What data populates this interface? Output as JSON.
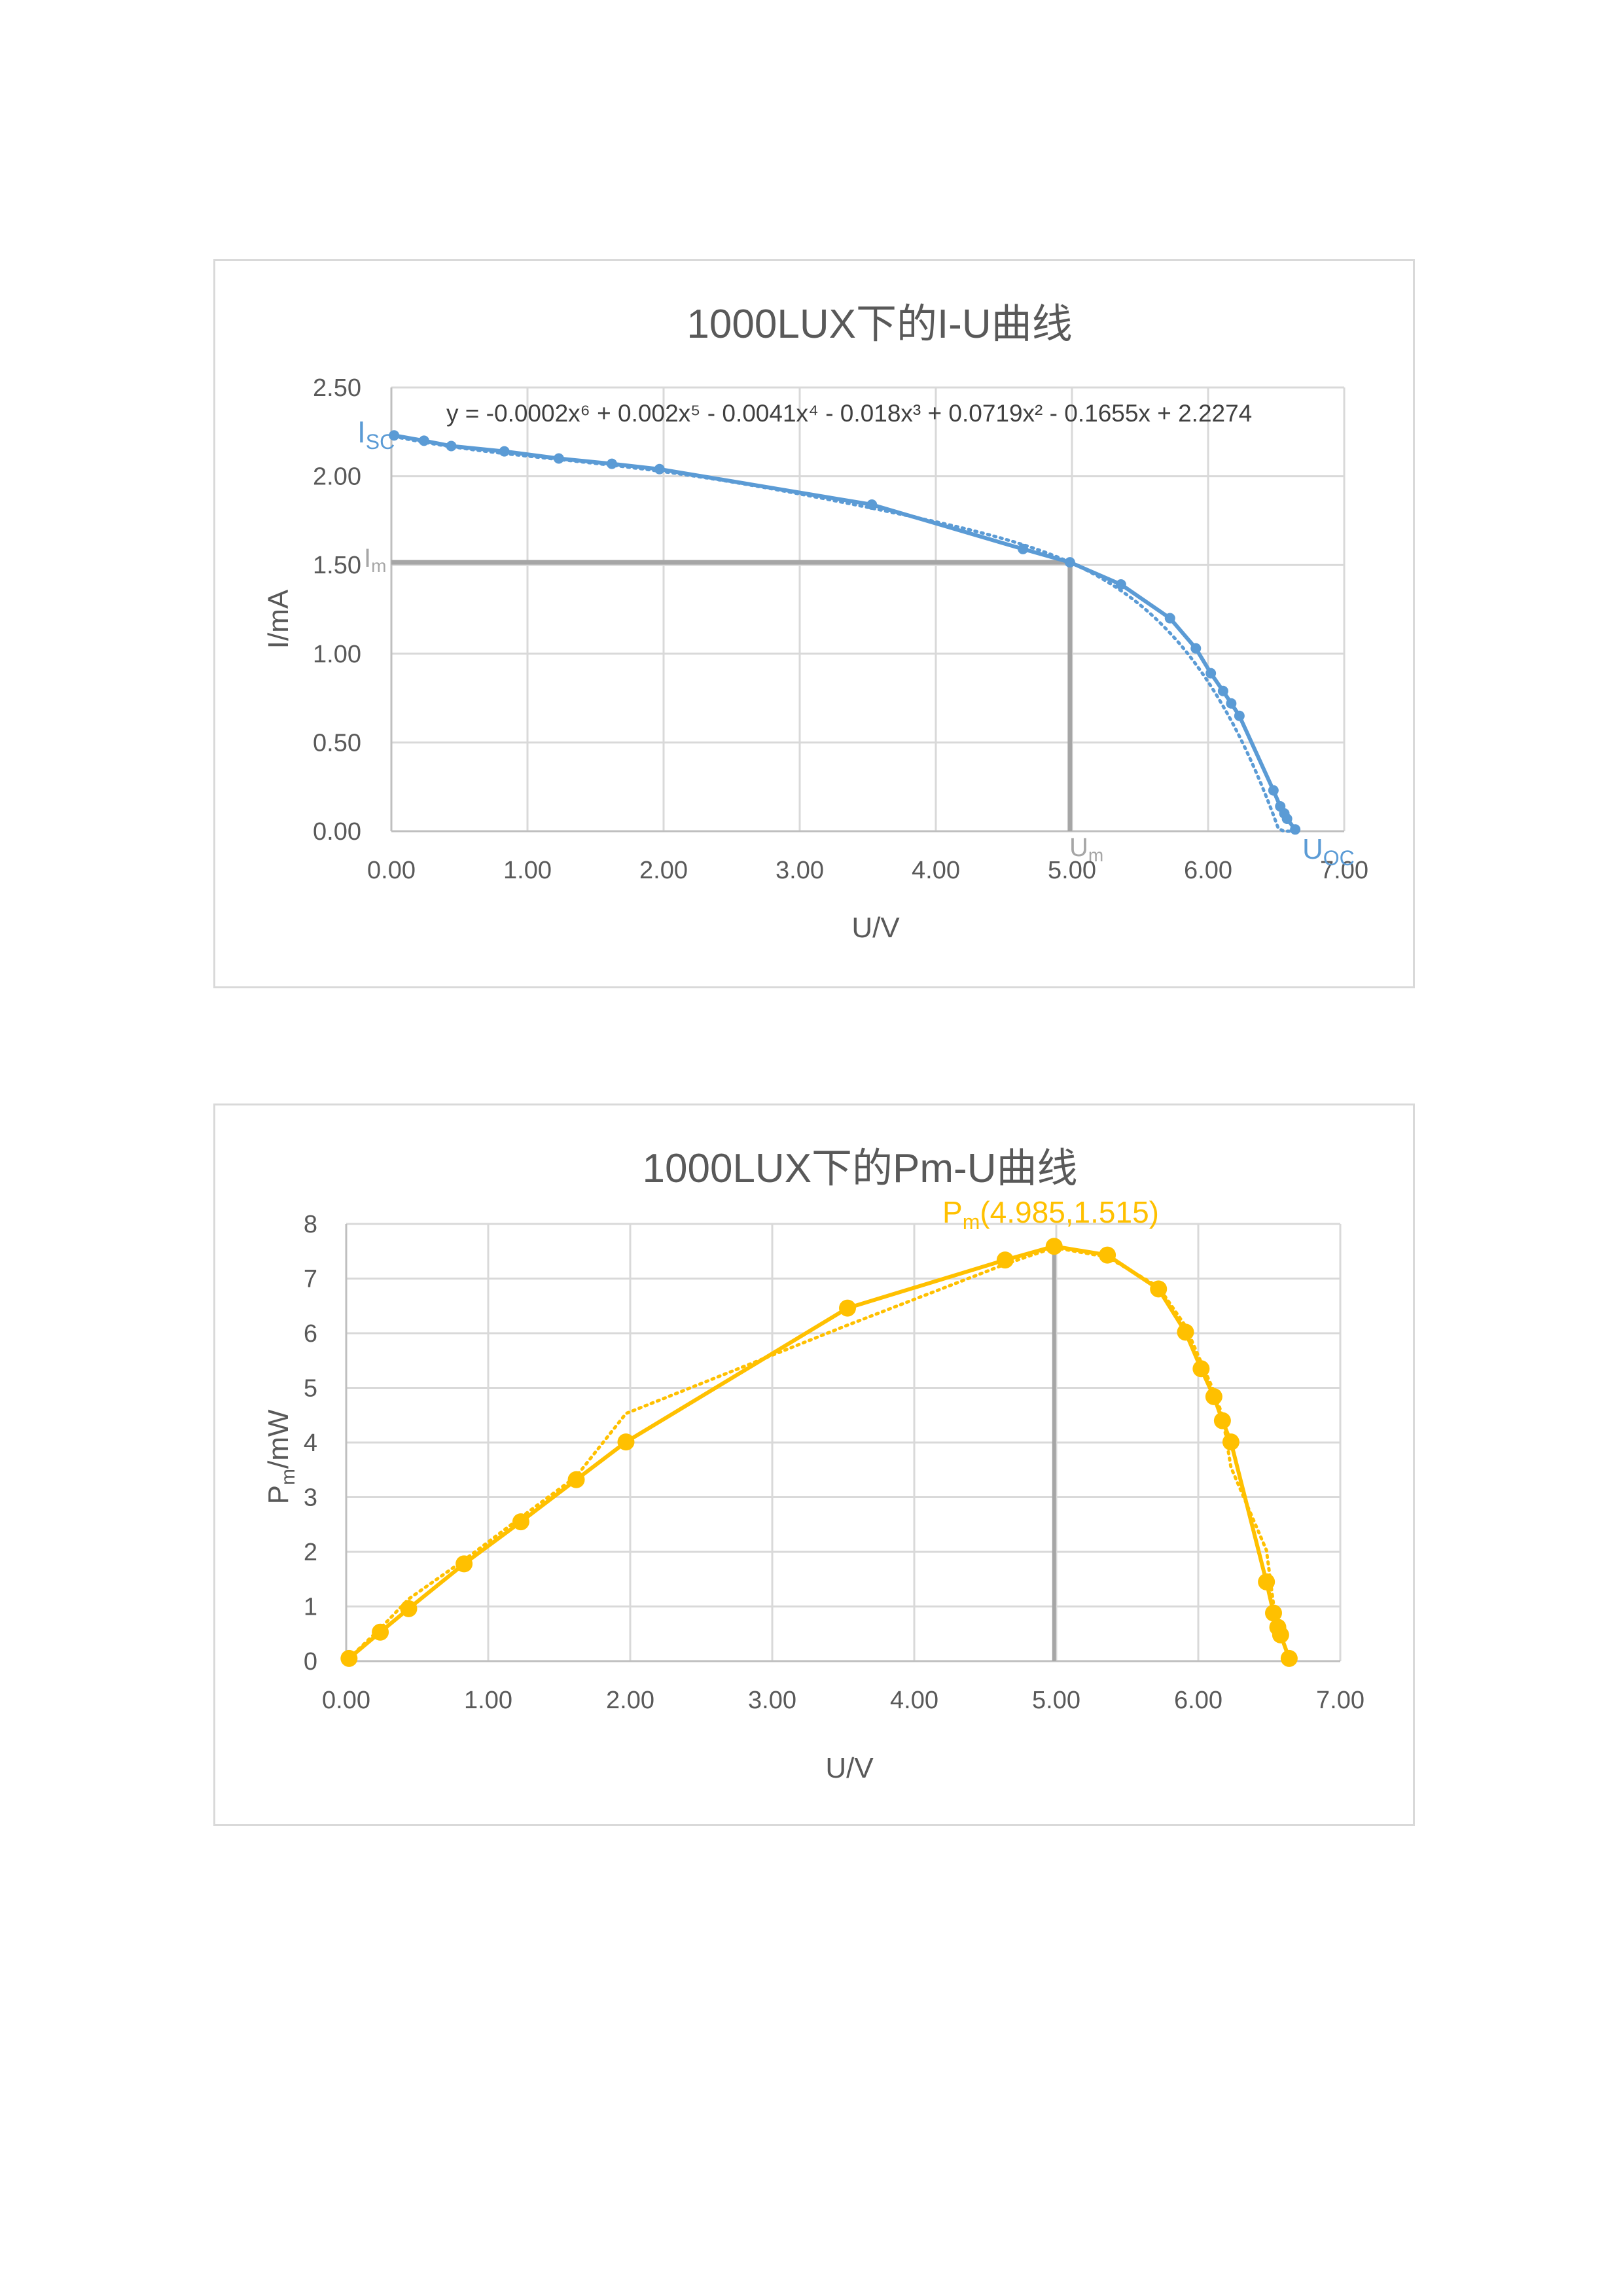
{
  "chart_data": [
    {
      "type": "line",
      "title": "1000LUX下的I-U曲线",
      "xlabel": "U/V",
      "ylabel": "I/mA",
      "xlim": [
        0,
        7
      ],
      "ylim": [
        0,
        2.5
      ],
      "xticks": [
        "0.00",
        "1.00",
        "2.00",
        "3.00",
        "4.00",
        "5.00",
        "6.00",
        "7.00"
      ],
      "yticks": [
        "0.00",
        "0.50",
        "1.00",
        "1.50",
        "2.00",
        "2.50"
      ],
      "grid": true,
      "series": [
        {
          "color": "#5b9bd5",
          "x": [
            0.02,
            0.24,
            0.44,
            0.83,
            1.23,
            1.62,
            1.97,
            3.53,
            4.64,
            4.985,
            5.36,
            5.72,
            5.91,
            6.02,
            6.11,
            6.17,
            6.23,
            6.48,
            6.53,
            6.56,
            6.58,
            6.64
          ],
          "y": [
            2.23,
            2.2,
            2.17,
            2.14,
            2.1,
            2.07,
            2.04,
            1.84,
            1.59,
            1.515,
            1.39,
            1.2,
            1.03,
            0.89,
            0.79,
            0.72,
            0.65,
            0.23,
            0.14,
            0.1,
            0.07,
            0.01
          ]
        }
      ],
      "trendline": {
        "type": "polynomial",
        "order": 6,
        "style": "dotted",
        "coefficients": [
          -0.0002,
          0.002,
          -0.0041,
          -0.018,
          0.0719,
          -0.1655,
          2.2274
        ],
        "equation": "y = -0.0002x⁶ + 0.002x⁵ - 0.0041x⁴ - 0.018x³ + 0.0719x² - 0.1655x + 2.2274"
      },
      "markers": {
        "max_power_point": {
          "x": 4.985,
          "y": 1.515
        },
        "isc_label": "I",
        "isc_sub": "SC",
        "im_label": "I",
        "im_sub": "m",
        "um_label": "U",
        "um_sub": "m",
        "uoc_label": "U",
        "uoc_sub": "OC"
      },
      "colors": {
        "series": "#5b9bd5",
        "guide": "#a6a6a6",
        "guide_label": "#a6a6a6"
      }
    },
    {
      "type": "line",
      "title": "1000LUX下的Pm-U曲线",
      "xlabel": "U/V",
      "ylabel_main": "P",
      "ylabel_sub": "m",
      "ylabel_tail": "/mW",
      "xlim": [
        0,
        7
      ],
      "ylim": [
        0,
        8
      ],
      "xticks": [
        "0.00",
        "1.00",
        "2.00",
        "3.00",
        "4.00",
        "5.00",
        "6.00",
        "7.00"
      ],
      "yticks": [
        "0",
        "1",
        "2",
        "3",
        "4",
        "5",
        "6",
        "7",
        "8"
      ],
      "grid": true,
      "series": [
        {
          "color": "#ffc000",
          "x": [
            0.02,
            0.24,
            0.44,
            0.83,
            1.23,
            1.62,
            1.97,
            3.53,
            4.64,
            4.985,
            5.36,
            5.72,
            5.91,
            6.02,
            6.11,
            6.17,
            6.23,
            6.48,
            6.53,
            6.56,
            6.58,
            6.64
          ],
          "y": [
            0.05,
            0.53,
            0.96,
            1.78,
            2.55,
            3.32,
            4.01,
            6.46,
            7.34,
            7.59,
            7.43,
            6.81,
            6.02,
            5.35,
            4.84,
            4.4,
            4.01,
            1.45,
            0.88,
            0.62,
            0.48,
            0.05
          ]
        }
      ],
      "trendline": {
        "type": "polynomial",
        "style": "dotted"
      },
      "annotation": {
        "main": "P",
        "sub": "m",
        "tail": "(4.985,1.515)",
        "x": 4.985,
        "y": 7.59
      },
      "colors": {
        "series": "#ffc000",
        "guide": "#a6a6a6"
      }
    }
  ]
}
